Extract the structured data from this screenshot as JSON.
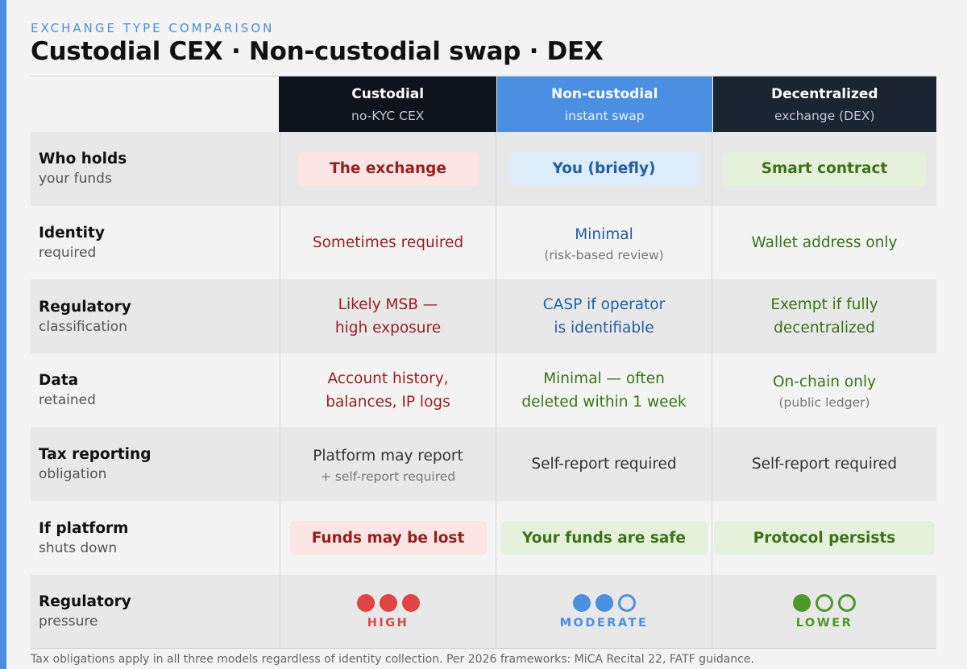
{
  "kicker": "EXCHANGE TYPE COMPARISON",
  "title": "Custodial CEX · Non-custodial swap · DEX",
  "columns": [
    {
      "title": "Custodial",
      "subtitle": "no-KYC CEX"
    },
    {
      "title": "Non-custodial",
      "subtitle": "instant swap"
    },
    {
      "title": "Decentralized",
      "subtitle": "exchange (DEX)"
    }
  ],
  "rows": {
    "holds": {
      "label": "Who holds",
      "sub": "your funds",
      "c1": "The exchange",
      "c2": "You (briefly)",
      "c3": "Smart contract"
    },
    "identity": {
      "label": "Identity",
      "sub": "required",
      "c1": "Sometimes required",
      "c2": "Minimal",
      "c2_note": "(risk-based review)",
      "c3": "Wallet address only"
    },
    "regulatory": {
      "label": "Regulatory",
      "sub": "classification",
      "c1_line1": "Likely MSB —",
      "c1_line2": "high exposure",
      "c2_line1": "CASP if operator",
      "c2_line2": "is identifiable",
      "c3_line1": "Exempt if fully",
      "c3_line2": "decentralized"
    },
    "data": {
      "label": "Data",
      "sub": "retained",
      "c1_line1": "Account history,",
      "c1_line2": "balances, IP logs",
      "c2_line1": "Minimal — often",
      "c2_line2": "deleted within 1 week",
      "c3": "On-chain only",
      "c3_note": "(public ledger)"
    },
    "tax": {
      "label": "Tax reporting",
      "sub": "obligation",
      "c1": "Platform may report",
      "c1_note": "+ self-report required",
      "c2": "Self-report required",
      "c3": "Self-report required"
    },
    "shutdown": {
      "label": "If platform",
      "sub": "shuts down",
      "c1": "Funds may be lost",
      "c2": "Your funds are safe",
      "c3": "Protocol persists"
    },
    "pressure": {
      "label": "Regulatory",
      "sub": "pressure",
      "c1": {
        "level": "HIGH",
        "filled": 3,
        "total": 3,
        "color": "#e04444"
      },
      "c2": {
        "level": "MODERATE",
        "filled": 2,
        "total": 3,
        "color": "#4a8fe2"
      },
      "c3": {
        "level": "LOWER",
        "filled": 1,
        "total": 3,
        "color": "#4c9a24"
      }
    }
  },
  "colors": {
    "accent": "#4a8fe2",
    "red": "#9b1c1c",
    "blue": "#1f5fa6",
    "green": "#3a7317"
  },
  "footnote": "Tax obligations apply in all three models regardless of identity collection. Per 2026 frameworks: MiCA Recital 22, FATF guidance."
}
